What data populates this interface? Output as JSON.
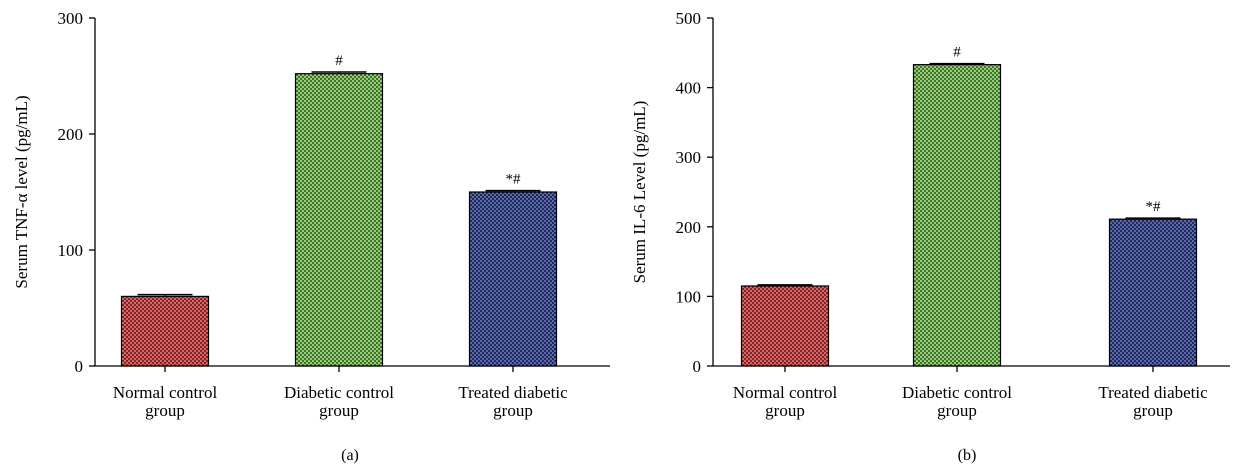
{
  "figure": {
    "background": "#ffffff"
  },
  "chart_data": [
    {
      "type": "bar",
      "panel_label": "(a)",
      "categories": [
        [
          "Normal control",
          "group"
        ],
        [
          "Diabetic control",
          "group"
        ],
        [
          "Treated diabetic",
          "group"
        ]
      ],
      "values": [
        60,
        252,
        150
      ],
      "error": [
        1.5,
        1.5,
        1.2
      ],
      "significance": [
        "",
        "#",
        "*#"
      ],
      "colors": [
        "#d94848",
        "#7ec85a",
        "#3d4f9e"
      ],
      "ylabel": "Serum TNF-α level (pg/mL)",
      "xlabel": "",
      "title": "",
      "ylim": [
        0,
        300
      ],
      "yticks": [
        0,
        100,
        200,
        300
      ],
      "grid": false,
      "legend": "none",
      "bar_pattern": "checkered"
    },
    {
      "type": "bar",
      "panel_label": "(b)",
      "categories": [
        [
          "Normal control",
          "group"
        ],
        [
          "Diabetic control",
          "group"
        ],
        [
          "Treated diabetic",
          "group"
        ]
      ],
      "values": [
        115,
        433,
        211
      ],
      "error": [
        1.5,
        1.5,
        1.5
      ],
      "significance": [
        "",
        "#",
        "*#"
      ],
      "colors": [
        "#d94848",
        "#7ec85a",
        "#3d4f9e"
      ],
      "ylabel": "Serum IL-6 Level (pg/mL)",
      "xlabel": "",
      "title": "",
      "ylim": [
        0,
        500
      ],
      "yticks": [
        0,
        100,
        200,
        300,
        400,
        500
      ],
      "grid": false,
      "legend": "none",
      "bar_pattern": "checkered"
    }
  ]
}
